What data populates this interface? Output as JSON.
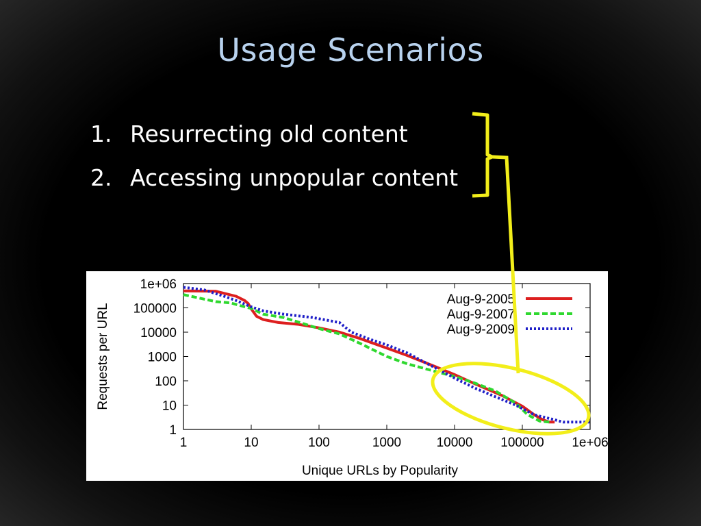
{
  "slide": {
    "title": "Usage Scenarios",
    "bullets": [
      {
        "number": "1.",
        "text": "Resurrecting old content"
      },
      {
        "number": "2.",
        "text": "Accessing unpopular content"
      }
    ],
    "annotation_color": "#f2ee1a"
  },
  "chart_data": {
    "type": "line",
    "title": "",
    "xlabel": "Unique URLs by Popularity",
    "ylabel": "Requests per URL",
    "x_scale": "log",
    "y_scale": "log",
    "xlim": [
      1,
      1000000
    ],
    "ylim": [
      1,
      1000000
    ],
    "x_ticks": [
      "1",
      "10",
      "100",
      "1000",
      "10000",
      "100000",
      "1e+06"
    ],
    "y_ticks": [
      "1e+06",
      "100000",
      "10000",
      "1000",
      "100",
      "10",
      "1"
    ],
    "grid": false,
    "legend_position": "top-right",
    "series": [
      {
        "name": "Aug-9-2005",
        "color": "#dd1f1f",
        "dash": "solid",
        "points": [
          [
            1,
            500000
          ],
          [
            3,
            480000
          ],
          [
            6,
            300000
          ],
          [
            8,
            200000
          ],
          [
            9,
            150000
          ],
          [
            10,
            90000
          ],
          [
            12,
            45000
          ],
          [
            15,
            33000
          ],
          [
            25,
            25000
          ],
          [
            50,
            21000
          ],
          [
            100,
            15000
          ],
          [
            200,
            10000
          ],
          [
            400,
            5500
          ],
          [
            1000,
            2200
          ],
          [
            2000,
            1100
          ],
          [
            5000,
            400
          ],
          [
            10000,
            180
          ],
          [
            20000,
            75
          ],
          [
            50000,
            25
          ],
          [
            100000,
            9
          ],
          [
            150000,
            4
          ],
          [
            200000,
            2.5
          ],
          [
            250000,
            2
          ],
          [
            300000,
            2
          ]
        ]
      },
      {
        "name": "Aug-9-2007",
        "color": "#2fd82f",
        "dash": "dashed",
        "points": [
          [
            1,
            350000
          ],
          [
            2,
            230000
          ],
          [
            3,
            180000
          ],
          [
            5,
            160000
          ],
          [
            8,
            110000
          ],
          [
            10,
            95000
          ],
          [
            15,
            55000
          ],
          [
            30,
            40000
          ],
          [
            60,
            22000
          ],
          [
            100,
            14000
          ],
          [
            200,
            8500
          ],
          [
            400,
            3500
          ],
          [
            1000,
            1000
          ],
          [
            2000,
            500
          ],
          [
            5000,
            250
          ],
          [
            10000,
            150
          ],
          [
            20000,
            80
          ],
          [
            40000,
            38
          ],
          [
            80000,
            12
          ],
          [
            120000,
            4
          ],
          [
            180000,
            2.2
          ],
          [
            250000,
            2
          ]
        ]
      },
      {
        "name": "Aug-9-2009",
        "color": "#1f1fc8",
        "dash": "dotted",
        "points": [
          [
            1,
            700000
          ],
          [
            2,
            550000
          ],
          [
            4,
            300000
          ],
          [
            6,
            200000
          ],
          [
            10,
            110000
          ],
          [
            15,
            75000
          ],
          [
            30,
            55000
          ],
          [
            80,
            40000
          ],
          [
            200,
            25000
          ],
          [
            300,
            10000
          ],
          [
            600,
            4800
          ],
          [
            1000,
            3000
          ],
          [
            2000,
            1400
          ],
          [
            4000,
            500
          ],
          [
            8000,
            180
          ],
          [
            12000,
            100
          ],
          [
            20000,
            50
          ],
          [
            40000,
            22
          ],
          [
            80000,
            10
          ],
          [
            150000,
            4
          ],
          [
            300000,
            2.5
          ],
          [
            400000,
            2
          ],
          [
            1000000,
            2
          ]
        ]
      }
    ]
  }
}
